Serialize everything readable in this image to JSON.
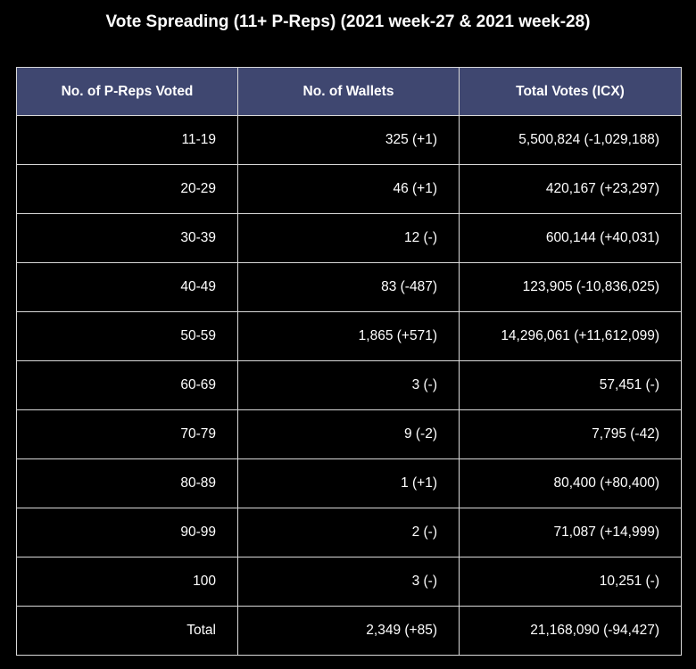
{
  "chart_data": {
    "type": "table",
    "title": "Vote Spreading (11+ P-Reps) (2021 week-27 & 2021 week-28)",
    "columns": [
      "No. of P-Reps Voted",
      "No. of Wallets",
      "Total Votes (ICX)"
    ],
    "rows": [
      [
        "11-19",
        "325 (+1)",
        "5,500,824 (-1,029,188)"
      ],
      [
        "20-29",
        "46 (+1)",
        "420,167 (+23,297)"
      ],
      [
        "30-39",
        "12 (-)",
        "600,144 (+40,031)"
      ],
      [
        "40-49",
        "83 (-487)",
        "123,905 (-10,836,025)"
      ],
      [
        "50-59",
        "1,865 (+571)",
        "14,296,061 (+11,612,099)"
      ],
      [
        "60-69",
        "3 (-)",
        "57,451 (-)"
      ],
      [
        "70-79",
        "9 (-2)",
        "7,795 (-42)"
      ],
      [
        "80-89",
        "1 (+1)",
        "80,400 (+80,400)"
      ],
      [
        "90-99",
        "2 (-)",
        "71,087 (+14,999)"
      ],
      [
        "100",
        "3 (-)",
        "10,251 (-)"
      ],
      [
        "Total",
        "2,349 (+85)",
        "21,168,090 (-94,427)"
      ]
    ]
  },
  "colors": {
    "background": "#000000",
    "header_fill": "#3f4770",
    "grid_line": "#d9d9d9",
    "text": "#ffffff"
  }
}
